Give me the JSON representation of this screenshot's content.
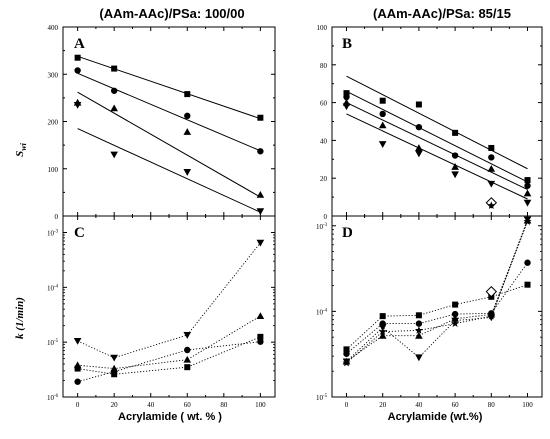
{
  "figure": {
    "col_titles": [
      "(AAm-AAc)/PSa:  100/00",
      "(AAm-AAc)/PSa: 85/15"
    ],
    "xlabels": [
      "Acrylamide ( wt. % )",
      "Acrylamide (wt.%)"
    ],
    "ylabels": {
      "sw": "S",
      "sw_sub": "wi",
      "k": "k (1/min)"
    },
    "colors": {
      "ink": "#000000",
      "frame": "#000000"
    }
  },
  "chart_data": [
    {
      "panel": "A",
      "type": "scatter",
      "x_ticks": [
        0,
        20,
        40,
        60,
        80,
        100
      ],
      "xlim": [
        -8,
        108
      ],
      "y_ticks": [
        0,
        100,
        200,
        300,
        400
      ],
      "ylim": [
        0,
        400
      ],
      "yscale": "linear",
      "fit_lines": true,
      "series": [
        {
          "marker": "square",
          "x": [
            0,
            20,
            60,
            100
          ],
          "y": [
            335,
            312,
            258,
            208
          ],
          "fit": [
            [
              0,
              338
            ],
            [
              100,
              206
            ]
          ]
        },
        {
          "marker": "circle",
          "x": [
            0,
            20,
            60,
            100
          ],
          "y": [
            308,
            265,
            212,
            137
          ],
          "fit": [
            [
              0,
              302
            ],
            [
              100,
              138
            ]
          ]
        },
        {
          "marker": "triangle",
          "x": [
            0,
            20,
            60,
            100
          ],
          "y": [
            240,
            228,
            178,
            45
          ],
          "fit": [
            [
              0,
              262
            ],
            [
              100,
              40
            ]
          ]
        },
        {
          "marker": "tri-down",
          "x": [
            0,
            20,
            60,
            100
          ],
          "y": [
            235,
            130,
            93,
            10
          ],
          "fit": [
            [
              0,
              185
            ],
            [
              100,
              8
            ]
          ]
        }
      ]
    },
    {
      "panel": "B",
      "type": "scatter",
      "x_ticks": [
        0,
        20,
        40,
        60,
        80,
        100
      ],
      "xlim": [
        -8,
        108
      ],
      "y_ticks": [
        0,
        20,
        40,
        60,
        80,
        100
      ],
      "ylim": [
        0,
        100
      ],
      "yscale": "linear",
      "fit_lines": true,
      "series": [
        {
          "marker": "square",
          "x": [
            0,
            20,
            40,
            60,
            80,
            100
          ],
          "y": [
            65,
            61,
            59,
            44,
            36,
            19
          ],
          "fit": [
            [
              0,
              74
            ],
            [
              100,
              25
            ]
          ]
        },
        {
          "marker": "circle",
          "x": [
            0,
            20,
            40,
            60,
            80,
            100
          ],
          "y": [
            63,
            54,
            47,
            32,
            31,
            16
          ],
          "fit": [
            [
              0,
              66
            ],
            [
              100,
              18
            ]
          ]
        },
        {
          "marker": "triangle",
          "x": [
            0,
            20,
            40,
            60,
            80,
            100
          ],
          "y": [
            60,
            48,
            36,
            26,
            25,
            12
          ],
          "fit": [
            [
              0,
              60
            ],
            [
              100,
              14
            ]
          ]
        },
        {
          "marker": "tri-down",
          "x": [
            0,
            20,
            40,
            60,
            80,
            100
          ],
          "y": [
            58,
            38,
            33,
            22,
            17,
            7
          ],
          "fit": [
            [
              0,
              54
            ],
            [
              100,
              9
            ]
          ]
        },
        {
          "marker": "diamond-open",
          "x": [
            80
          ],
          "y": [
            7
          ]
        },
        {
          "marker": "star",
          "x": [
            80
          ],
          "y": [
            5.5
          ]
        }
      ]
    },
    {
      "panel": "C",
      "type": "line",
      "x_ticks": [
        0,
        20,
        40,
        60,
        80,
        100
      ],
      "xlim": [
        -8,
        108
      ],
      "y_ticks": [
        1e-06,
        1e-05,
        0.0001,
        0.001
      ],
      "y_tick_labels": [
        [
          "10",
          "-6"
        ],
        [
          "10",
          "-5"
        ],
        [
          "10",
          "-4"
        ],
        [
          "10",
          "-3"
        ]
      ],
      "ylim": [
        1e-06,
        0.002
      ],
      "yscale": "log",
      "line_style": "dotted",
      "series": [
        {
          "marker": "tri-down",
          "x": [
            0,
            20,
            60,
            100
          ],
          "y": [
            1.05e-05,
            5.2e-06,
            1.35e-05,
            0.00065
          ]
        },
        {
          "marker": "triangle",
          "x": [
            0,
            20,
            60,
            100
          ],
          "y": [
            3.8e-06,
            3.3e-06,
            4.8e-06,
            3e-05
          ]
        },
        {
          "marker": "square",
          "x": [
            0,
            20,
            60,
            100
          ],
          "y": [
            3.3e-06,
            2.6e-06,
            3.5e-06,
            1.25e-05
          ]
        },
        {
          "marker": "circle",
          "x": [
            0,
            20,
            60,
            100
          ],
          "y": [
            1.9e-06,
            2.9e-06,
            7.2e-06,
            1.02e-05
          ]
        }
      ]
    },
    {
      "panel": "D",
      "type": "line",
      "x_ticks": [
        0,
        20,
        40,
        60,
        80,
        100
      ],
      "xlim": [
        -8,
        108
      ],
      "y_ticks": [
        1e-05,
        0.0001,
        0.001
      ],
      "y_tick_labels": [
        [
          "10",
          "-5"
        ],
        [
          "10",
          "-4"
        ],
        [
          "10",
          "-3"
        ]
      ],
      "ylim": [
        1e-05,
        0.0013
      ],
      "yscale": "log",
      "line_style": "dotted",
      "series": [
        {
          "marker": "square",
          "x": [
            0,
            20,
            40,
            60,
            80,
            100
          ],
          "y": [
            3.6e-05,
            8.8e-05,
            9e-05,
            0.00012,
            0.000148,
            0.000205
          ]
        },
        {
          "marker": "circle",
          "x": [
            0,
            20,
            40,
            60,
            80,
            100
          ],
          "y": [
            3.2e-05,
            7.2e-05,
            7.2e-05,
            9.3e-05,
            9.5e-05,
            0.00037
          ]
        },
        {
          "marker": "triangle",
          "x": [
            0,
            20,
            40,
            60,
            80,
            100
          ],
          "y": [
            2.6e-05,
            5.2e-05,
            5.2e-05,
            8.2e-05,
            9.2e-05,
            0.00115
          ]
        },
        {
          "marker": "tri-down",
          "x": [
            0,
            20,
            40,
            60,
            80,
            100
          ],
          "y": [
            2.6e-05,
            6.5e-05,
            2.9e-05,
            7.8e-05,
            8.5e-05,
            0.00118
          ]
        },
        {
          "marker": "star",
          "x": [
            0,
            20,
            40,
            60,
            80,
            100
          ],
          "y": [
            2.5e-05,
            5.8e-05,
            6e-05,
            7.2e-05,
            8.8e-05,
            0.00112
          ]
        },
        {
          "marker": "diamond-open",
          "x": [
            80
          ],
          "y": [
            0.00017
          ]
        }
      ]
    }
  ]
}
